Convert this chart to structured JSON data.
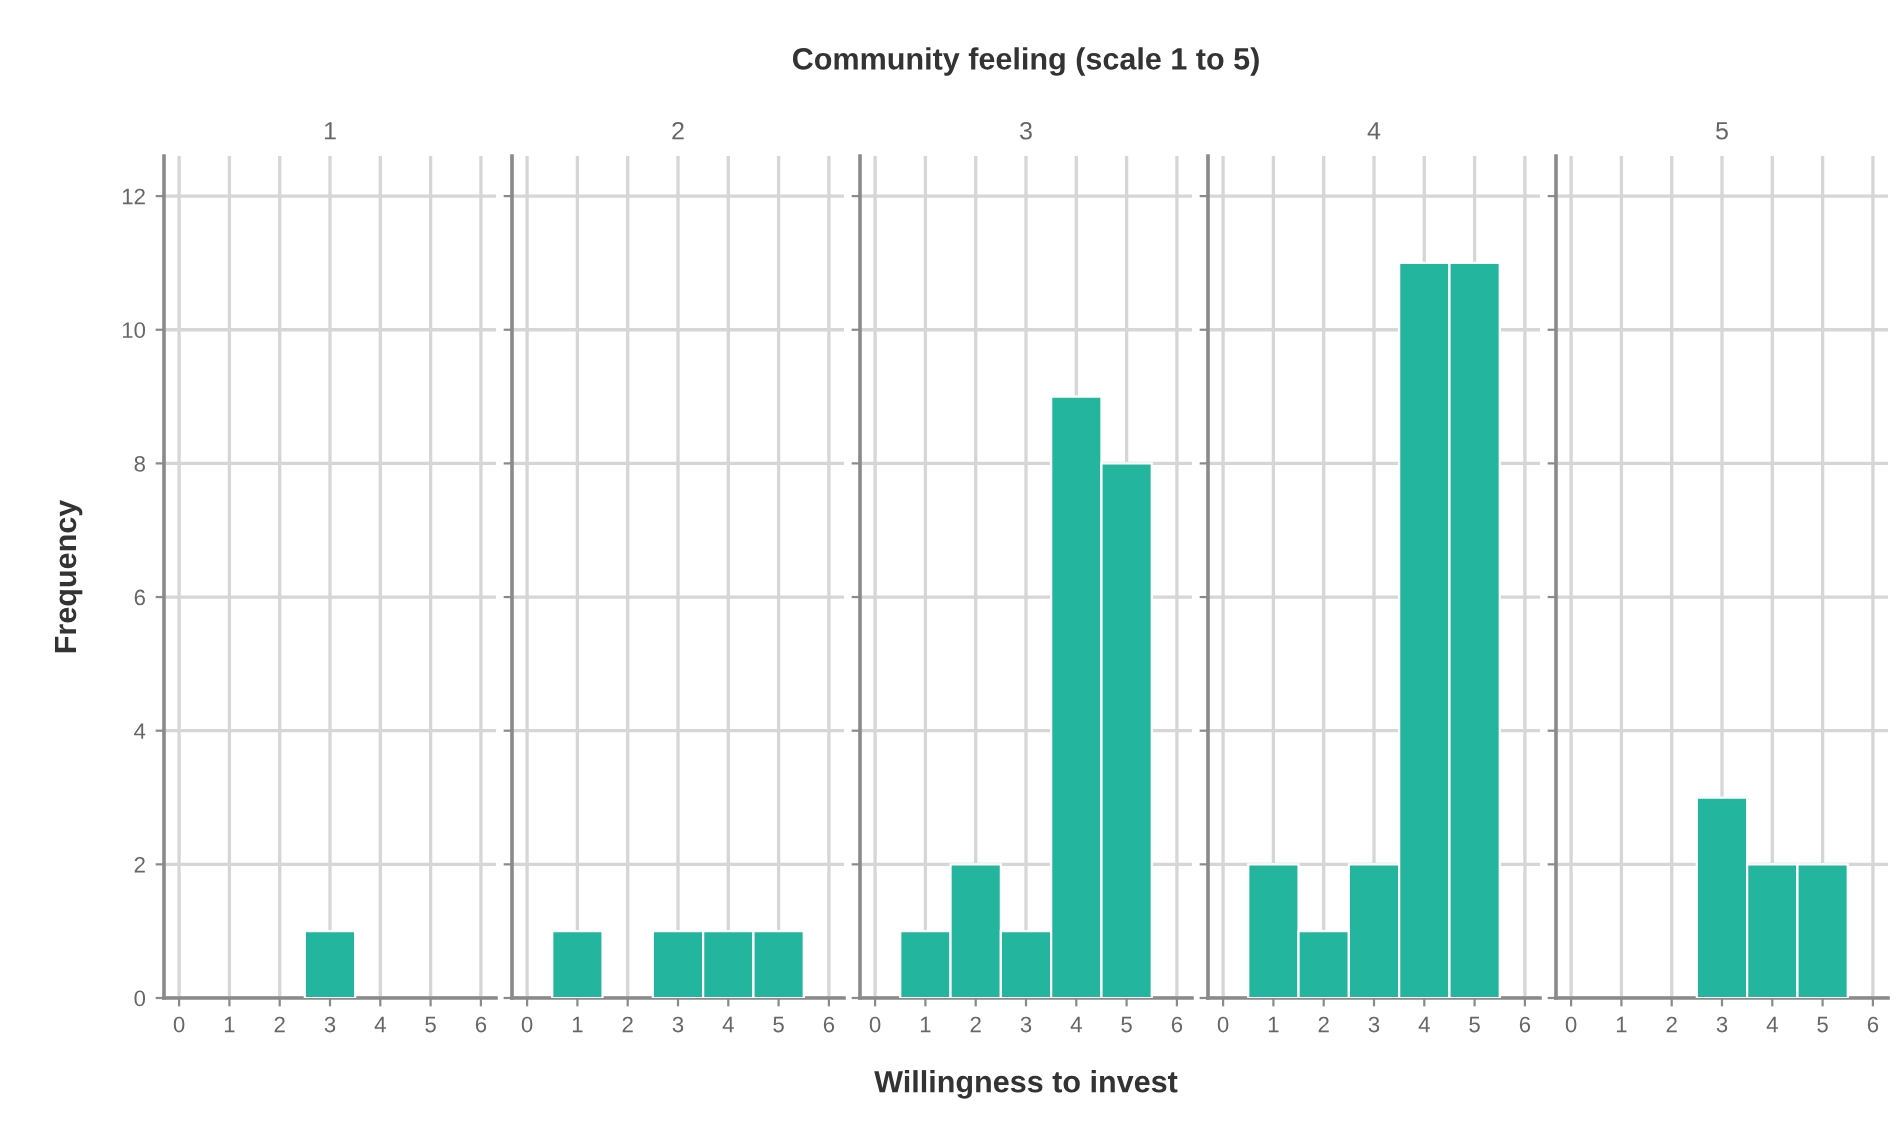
{
  "chart_data": [
    {
      "type": "histogram",
      "subtitle": "1",
      "ylabel": "Frequency",
      "bins": [
        0.5,
        1.5,
        2.5,
        3.5,
        4.5,
        5.5
      ],
      "values": [
        0,
        0,
        1,
        0,
        0
      ],
      "color": "#23b59e",
      "xlim": [
        -0.3,
        6.3
      ],
      "xticks": [
        0,
        1,
        2,
        3,
        4,
        5,
        6
      ],
      "ylim": [
        0,
        12.6
      ],
      "yticks": [
        0,
        2,
        4,
        6,
        8,
        10,
        12
      ],
      "grid": true
    },
    {
      "type": "histogram",
      "subtitle": "2",
      "bins": [
        0.5,
        1.5,
        2.5,
        3.5,
        4.5,
        5.5
      ],
      "values": [
        1,
        0,
        1,
        1,
        1
      ],
      "color": "#23b59e",
      "xlim": [
        -0.3,
        6.3
      ],
      "xticks": [
        0,
        1,
        2,
        3,
        4,
        5,
        6
      ],
      "ylim": [
        0,
        12.6
      ],
      "yticks": [
        0,
        2,
        4,
        6,
        8,
        10,
        12
      ],
      "grid": true,
      "tick_labels": "x"
    },
    {
      "type": "histogram",
      "title": "Community feeling (scale 1 to 5)",
      "subtitle": "3",
      "xlabel": "Willingness to invest",
      "bins": [
        0.5,
        1.5,
        2.5,
        3.5,
        4.5,
        5.5
      ],
      "values": [
        1,
        2,
        1,
        9,
        8
      ],
      "color": "#23b59e",
      "xlim": [
        -0.3,
        6.3
      ],
      "xticks": [
        0,
        1,
        2,
        3,
        4,
        5,
        6
      ],
      "ylim": [
        0,
        12.6
      ],
      "yticks": [
        0,
        2,
        4,
        6,
        8,
        10,
        12
      ],
      "grid": true,
      "tick_labels": "x"
    },
    {
      "type": "histogram",
      "subtitle": "4",
      "bins": [
        0.5,
        1.5,
        2.5,
        3.5,
        4.5,
        5.5
      ],
      "values": [
        2,
        1,
        2,
        11,
        11
      ],
      "color": "#23b59e",
      "xlim": [
        -0.3,
        6.3
      ],
      "xticks": [
        0,
        1,
        2,
        3,
        4,
        5,
        6
      ],
      "ylim": [
        0,
        12.6
      ],
      "yticks": [
        0,
        2,
        4,
        6,
        8,
        10,
        12
      ],
      "grid": true,
      "tick_labels": "x"
    },
    {
      "type": "histogram",
      "subtitle": "5",
      "bins": [
        0.5,
        1.5,
        2.5,
        3.5,
        4.5,
        5.5
      ],
      "values": [
        0,
        0,
        3,
        2,
        2
      ],
      "color": "#23b59e",
      "xlim": [
        -0.3,
        6.3
      ],
      "xticks": [
        0,
        1,
        2,
        3,
        4,
        5,
        6
      ],
      "ylim": [
        0,
        12.6
      ],
      "yticks": [
        0,
        2,
        4,
        6,
        8,
        10,
        12
      ],
      "grid": true,
      "tick_labels": "x"
    }
  ]
}
